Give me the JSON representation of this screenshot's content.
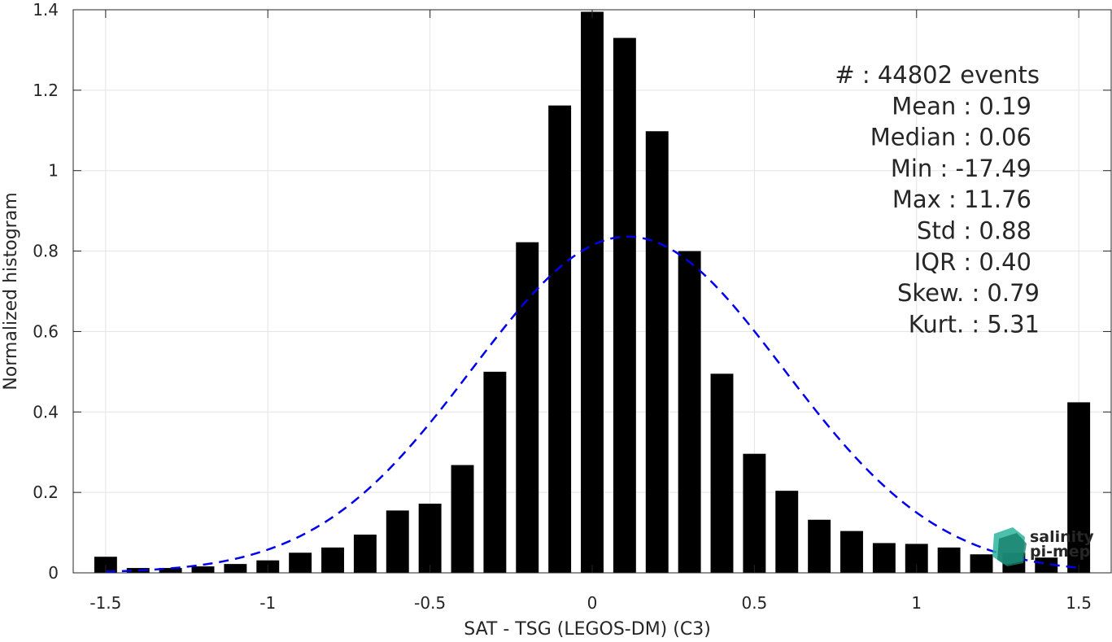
{
  "chart_data": {
    "type": "bar",
    "title": "",
    "xlabel": "SAT - TSG (LEGOS-DM) (C3)",
    "ylabel": "Normalized histogram",
    "xlim": [
      -1.6,
      1.6
    ],
    "ylim": [
      0,
      1.4
    ],
    "grid": true,
    "xticks": [
      {
        "value": -1.5,
        "label": "-1.5"
      },
      {
        "value": -1,
        "label": "-1"
      },
      {
        "value": -0.5,
        "label": "-0.5"
      },
      {
        "value": 0,
        "label": "0"
      },
      {
        "value": 0.5,
        "label": "0.5"
      },
      {
        "value": 1,
        "label": "1"
      },
      {
        "value": 1.5,
        "label": "1.5"
      }
    ],
    "yticks": [
      {
        "value": 0,
        "label": "0"
      },
      {
        "value": 0.2,
        "label": "0.2"
      },
      {
        "value": 0.4,
        "label": "0.4"
      },
      {
        "value": 0.6,
        "label": "0.6"
      },
      {
        "value": 0.8,
        "label": "0.8"
      },
      {
        "value": 1,
        "label": "1"
      },
      {
        "value": 1.2,
        "label": "1.2"
      },
      {
        "value": 1.4,
        "label": "1.4"
      }
    ],
    "bar_width": 0.07,
    "bar_color": "#000000",
    "bars": {
      "x": [
        -1.5,
        -1.4,
        -1.3,
        -1.2,
        -1.1,
        -1.0,
        -0.9,
        -0.8,
        -0.7,
        -0.6,
        -0.5,
        -0.4,
        -0.3,
        -0.2,
        -0.1,
        0.0,
        0.1,
        0.2,
        0.3,
        0.4,
        0.5,
        0.6,
        0.7,
        0.8,
        0.9,
        1.0,
        1.1,
        1.2,
        1.3,
        1.4,
        1.5
      ],
      "values": [
        0.04,
        0.012,
        0.012,
        0.016,
        0.022,
        0.031,
        0.05,
        0.063,
        0.095,
        0.155,
        0.172,
        0.268,
        0.5,
        0.822,
        1.162,
        1.395,
        1.33,
        1.098,
        0.8,
        0.495,
        0.296,
        0.204,
        0.132,
        0.104,
        0.074,
        0.072,
        0.063,
        0.046,
        0.05,
        0.038,
        0.424
      ]
    },
    "fit_curve": {
      "style": "dashed",
      "color": "#0000ee",
      "mean": 0.11,
      "std": 0.48,
      "amplitude": 0.836,
      "x_range": [
        -1.5,
        1.5
      ]
    },
    "stats": [
      {
        "label": "#  : 44802 events"
      },
      {
        "label": "Mean : 0.19"
      },
      {
        "label": "Median : 0.06"
      },
      {
        "label": "Min : -17.49"
      },
      {
        "label": "Max : 11.76"
      },
      {
        "label": "Std : 0.88"
      },
      {
        "label": "IQR : 0.40"
      },
      {
        "label": "Skew. : 0.79"
      },
      {
        "label": "Kurt. : 5.31"
      }
    ],
    "logo": {
      "line1": "salinity",
      "line2": "pi-mep",
      "color": "#1aa58c"
    }
  }
}
